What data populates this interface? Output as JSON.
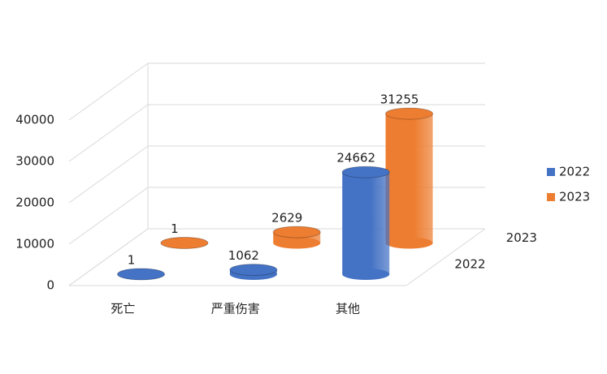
{
  "chart_data": {
    "type": "cylinder-bar",
    "categories": [
      "死亡",
      "严重伤害",
      "其他"
    ],
    "series": [
      {
        "name": "2022",
        "color": "#4472c4",
        "values": [
          1,
          1062,
          24662
        ]
      },
      {
        "name": "2023",
        "color": "#ed7d31",
        "values": [
          1,
          2629,
          31255
        ]
      }
    ],
    "ylim": [
      0,
      40000
    ],
    "yticks": [
      0,
      10000,
      20000,
      30000,
      40000
    ],
    "grid": true,
    "legend": "right"
  }
}
